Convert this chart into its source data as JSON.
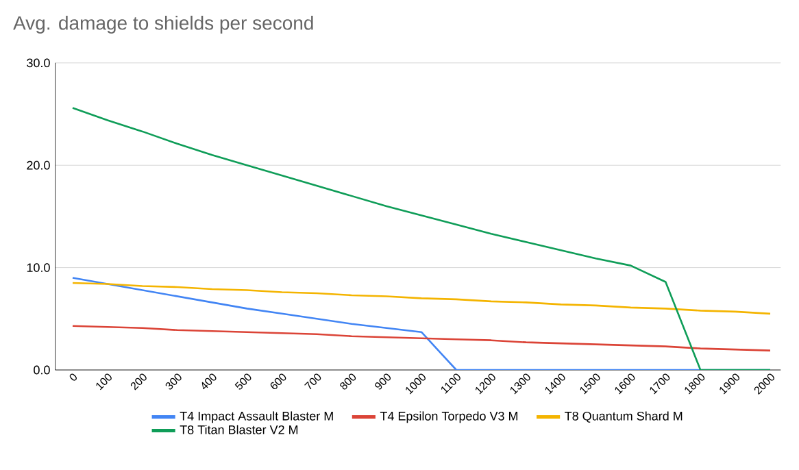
{
  "chart_data": {
    "type": "line",
    "title": "Avg. damage to shields per second",
    "categories": [
      "0",
      "100",
      "200",
      "300",
      "400",
      "500",
      "600",
      "700",
      "800",
      "900",
      "1000",
      "1100",
      "1200",
      "1300",
      "1400",
      "1500",
      "1600",
      "1700",
      "1800",
      "1900",
      "2000"
    ],
    "series": [
      {
        "name": "T4 Impact Assault Blaster M",
        "color": "#4285f4",
        "values": [
          9.0,
          8.4,
          7.8,
          7.2,
          6.6,
          6.0,
          5.5,
          5.0,
          4.5,
          4.1,
          3.7,
          0,
          0,
          0,
          0,
          0,
          0,
          0,
          0,
          0,
          0
        ]
      },
      {
        "name": "T4 Epsilon Torpedo V3 M",
        "color": "#db4437",
        "values": [
          4.3,
          4.2,
          4.1,
          3.9,
          3.8,
          3.7,
          3.6,
          3.5,
          3.3,
          3.2,
          3.1,
          3.0,
          2.9,
          2.7,
          2.6,
          2.5,
          2.4,
          2.3,
          2.1,
          2.0,
          1.9
        ]
      },
      {
        "name": "T8 Quantum Shard M",
        "color": "#f4b400",
        "values": [
          8.5,
          8.4,
          8.2,
          8.1,
          7.9,
          7.8,
          7.6,
          7.5,
          7.3,
          7.2,
          7.0,
          6.9,
          6.7,
          6.6,
          6.4,
          6.3,
          6.1,
          6.0,
          5.8,
          5.7,
          5.5
        ]
      },
      {
        "name": "T8 Titan Blaster V2 M",
        "color": "#0f9d58",
        "values": [
          25.6,
          24.4,
          23.3,
          22.1,
          21.0,
          20.0,
          19.0,
          18.0,
          17.0,
          16.0,
          15.1,
          14.2,
          13.3,
          12.5,
          11.7,
          10.9,
          10.2,
          8.6,
          0,
          0,
          0
        ]
      }
    ],
    "ylim": [
      0,
      30
    ],
    "yticks": [
      {
        "value": 0,
        "label": "0.0"
      },
      {
        "value": 10,
        "label": "10.0"
      },
      {
        "value": 20,
        "label": "20.0"
      },
      {
        "value": 30,
        "label": "30.0"
      }
    ],
    "grid": "y",
    "legend": "bottom",
    "marker": "none",
    "line_style": "solid"
  }
}
